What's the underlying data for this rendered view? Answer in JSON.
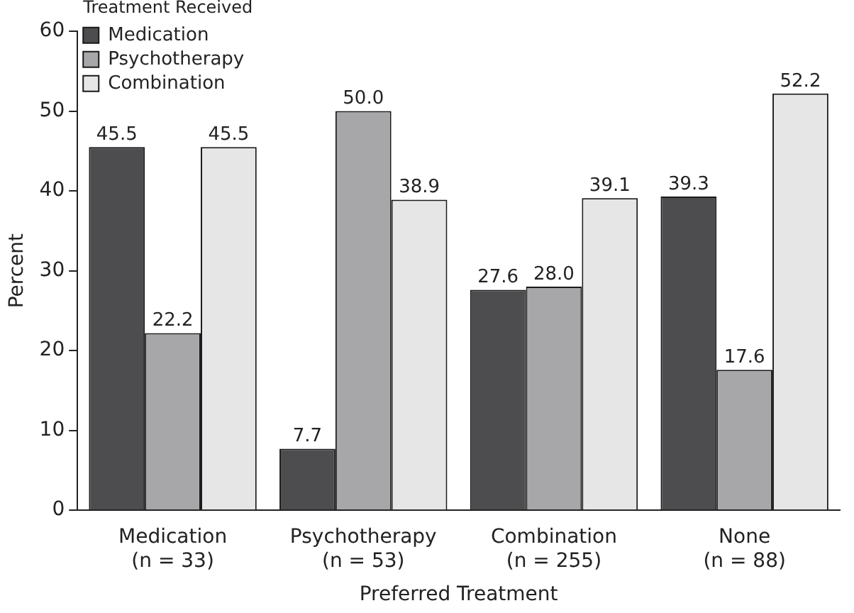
{
  "chart_data": {
    "type": "bar",
    "xlabel": "Preferred Treatment",
    "ylabel": "Percent",
    "legend_title": "Treatment Received",
    "legend": "top left",
    "categories": [
      "Medication\n(n = 33)",
      "Psychotherapy\n(n = 53)",
      "Combination\n(n = 255)",
      "None\n(n = 88)"
    ],
    "series": [
      {
        "name": "Medication",
        "color": "#4d4d4f",
        "values": [
          45.5,
          7.7,
          27.6,
          39.3
        ],
        "value_labels": [
          "45.5",
          "7.7",
          "27.6",
          "39.3"
        ]
      },
      {
        "name": "Psychotherapy",
        "color": "#a7a7a9",
        "values": [
          22.2,
          50.0,
          28.0,
          17.6
        ],
        "value_labels": [
          "22.2",
          "50.0",
          "28.0",
          "17.6"
        ]
      },
      {
        "name": "Combination",
        "color": "#e6e6e6",
        "values": [
          45.5,
          38.9,
          39.1,
          52.2
        ],
        "value_labels": [
          "45.5",
          "38.9",
          "39.1",
          "52.2"
        ]
      }
    ],
    "ylim": [
      0,
      60
    ],
    "yticks": [
      0,
      10,
      20,
      30,
      40,
      50,
      60
    ],
    "grid": false
  }
}
